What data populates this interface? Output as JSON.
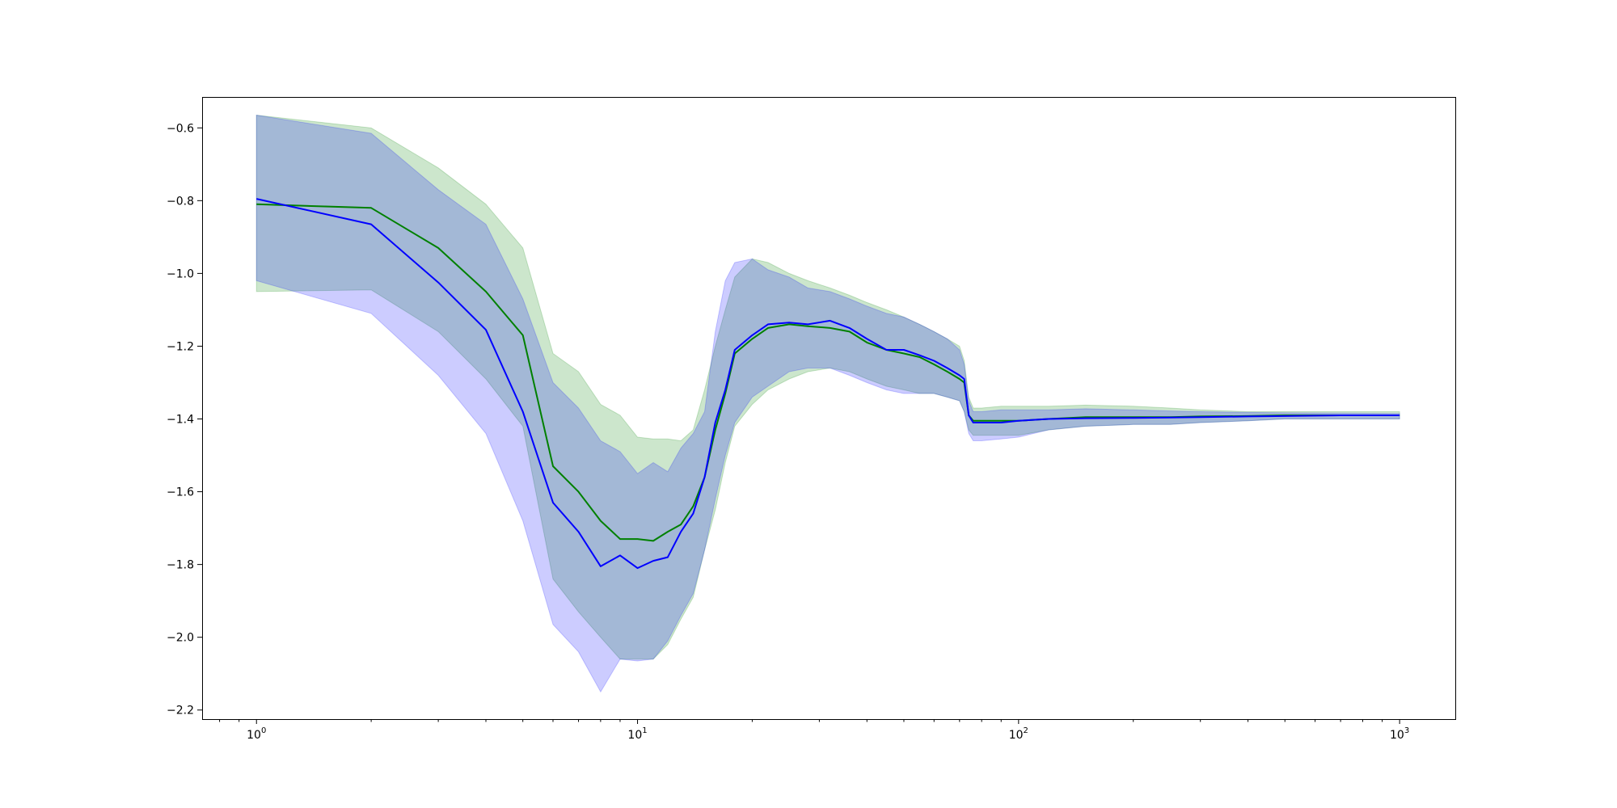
{
  "chart_data": {
    "type": "line",
    "title": "",
    "xlabel": "",
    "ylabel": "",
    "xscale": "log",
    "xlim": [
      0.72,
      1400
    ],
    "ylim": [
      -2.225,
      -0.515
    ],
    "grid": false,
    "legend": "none",
    "x_ticks": [
      {
        "value": 1,
        "base": "10",
        "exp": "0"
      },
      {
        "value": 10,
        "base": "10",
        "exp": "1"
      },
      {
        "value": 100,
        "base": "10",
        "exp": "2"
      },
      {
        "value": 1000,
        "base": "10",
        "exp": "3"
      }
    ],
    "y_ticks": [
      {
        "value": -0.6,
        "label": "−0.6"
      },
      {
        "value": -0.8,
        "label": "−0.8"
      },
      {
        "value": -1.0,
        "label": "−1.0"
      },
      {
        "value": -1.2,
        "label": "−1.2"
      },
      {
        "value": -1.4,
        "label": "−1.4"
      },
      {
        "value": -1.6,
        "label": "−1.6"
      },
      {
        "value": -1.8,
        "label": "−1.8"
      },
      {
        "value": -2.0,
        "label": "−2.0"
      },
      {
        "value": -2.2,
        "label": "−2.2"
      }
    ],
    "series": [
      {
        "color": "#008000",
        "band_color": "#008000",
        "band_opacity": 0.2,
        "x": [
          1,
          2,
          3,
          4,
          5,
          6,
          7,
          8,
          9,
          10,
          11,
          12,
          13,
          14,
          15,
          16,
          17,
          18,
          20,
          22,
          25,
          28,
          32,
          36,
          40,
          45,
          50,
          55,
          60,
          65,
          70,
          72,
          74,
          76,
          80,
          90,
          100,
          120,
          150,
          200,
          250,
          300,
          400,
          500,
          700,
          1000
        ],
        "y": [
          -0.81,
          -0.82,
          -0.93,
          -1.05,
          -1.17,
          -1.53,
          -1.6,
          -1.68,
          -1.73,
          -1.73,
          -1.735,
          -1.71,
          -1.69,
          -1.64,
          -1.56,
          -1.43,
          -1.33,
          -1.22,
          -1.18,
          -1.15,
          -1.14,
          -1.145,
          -1.15,
          -1.16,
          -1.19,
          -1.21,
          -1.22,
          -1.23,
          -1.25,
          -1.27,
          -1.29,
          -1.3,
          -1.39,
          -1.405,
          -1.405,
          -1.405,
          -1.405,
          -1.4,
          -1.395,
          -1.395,
          -1.395,
          -1.393,
          -1.392,
          -1.39,
          -1.39,
          -1.39
        ],
        "upper": [
          -0.565,
          -0.6,
          -0.71,
          -0.81,
          -0.93,
          -1.22,
          -1.27,
          -1.36,
          -1.39,
          -1.45,
          -1.455,
          -1.455,
          -1.46,
          -1.43,
          -1.32,
          -1.2,
          -1.1,
          -1.01,
          -0.96,
          -0.97,
          -1.0,
          -1.02,
          -1.04,
          -1.06,
          -1.08,
          -1.1,
          -1.12,
          -1.14,
          -1.16,
          -1.18,
          -1.2,
          -1.24,
          -1.34,
          -1.37,
          -1.37,
          -1.365,
          -1.365,
          -1.365,
          -1.362,
          -1.365,
          -1.37,
          -1.375,
          -1.38,
          -1.38,
          -1.38,
          -1.38
        ],
        "lower": [
          -1.05,
          -1.045,
          -1.16,
          -1.29,
          -1.42,
          -1.84,
          -1.93,
          -2.0,
          -2.06,
          -2.06,
          -2.06,
          -2.02,
          -1.95,
          -1.89,
          -1.76,
          -1.65,
          -1.52,
          -1.42,
          -1.36,
          -1.32,
          -1.29,
          -1.27,
          -1.26,
          -1.27,
          -1.29,
          -1.31,
          -1.32,
          -1.33,
          -1.33,
          -1.34,
          -1.35,
          -1.38,
          -1.43,
          -1.445,
          -1.445,
          -1.445,
          -1.445,
          -1.43,
          -1.42,
          -1.415,
          -1.415,
          -1.41,
          -1.405,
          -1.4,
          -1.4,
          -1.4
        ]
      },
      {
        "color": "#0000ff",
        "band_color": "#0000ff",
        "band_opacity": 0.2,
        "x": [
          1,
          2,
          3,
          4,
          5,
          6,
          7,
          8,
          9,
          10,
          11,
          12,
          13,
          14,
          15,
          16,
          17,
          18,
          20,
          22,
          25,
          28,
          32,
          36,
          40,
          45,
          50,
          55,
          60,
          65,
          70,
          72,
          74,
          76,
          80,
          90,
          100,
          120,
          150,
          200,
          250,
          300,
          400,
          500,
          700,
          1000
        ],
        "y": [
          -0.795,
          -0.865,
          -1.025,
          -1.155,
          -1.38,
          -1.63,
          -1.71,
          -1.805,
          -1.775,
          -1.81,
          -1.79,
          -1.78,
          -1.71,
          -1.66,
          -1.56,
          -1.41,
          -1.32,
          -1.21,
          -1.17,
          -1.14,
          -1.135,
          -1.14,
          -1.13,
          -1.15,
          -1.18,
          -1.21,
          -1.21,
          -1.225,
          -1.24,
          -1.26,
          -1.28,
          -1.29,
          -1.39,
          -1.41,
          -1.41,
          -1.41,
          -1.405,
          -1.4,
          -1.398,
          -1.397,
          -1.396,
          -1.395,
          -1.393,
          -1.392,
          -1.39,
          -1.39
        ],
        "upper": [
          -0.565,
          -0.615,
          -0.77,
          -0.865,
          -1.07,
          -1.3,
          -1.37,
          -1.46,
          -1.49,
          -1.55,
          -1.52,
          -1.545,
          -1.48,
          -1.44,
          -1.38,
          -1.16,
          -1.02,
          -0.97,
          -0.96,
          -0.99,
          -1.01,
          -1.04,
          -1.05,
          -1.07,
          -1.09,
          -1.11,
          -1.12,
          -1.14,
          -1.16,
          -1.18,
          -1.21,
          -1.25,
          -1.35,
          -1.38,
          -1.38,
          -1.375,
          -1.375,
          -1.375,
          -1.372,
          -1.375,
          -1.378,
          -1.38,
          -1.382,
          -1.383,
          -1.384,
          -1.385
        ],
        "lower": [
          -1.02,
          -1.11,
          -1.28,
          -1.44,
          -1.68,
          -1.965,
          -2.04,
          -2.15,
          -2.06,
          -2.065,
          -2.06,
          -2.01,
          -1.94,
          -1.88,
          -1.76,
          -1.62,
          -1.5,
          -1.41,
          -1.34,
          -1.31,
          -1.27,
          -1.26,
          -1.26,
          -1.28,
          -1.3,
          -1.32,
          -1.33,
          -1.33,
          -1.33,
          -1.34,
          -1.35,
          -1.38,
          -1.44,
          -1.46,
          -1.46,
          -1.455,
          -1.45,
          -1.43,
          -1.42,
          -1.415,
          -1.415,
          -1.41,
          -1.405,
          -1.4,
          -1.4,
          -1.4
        ]
      }
    ]
  }
}
